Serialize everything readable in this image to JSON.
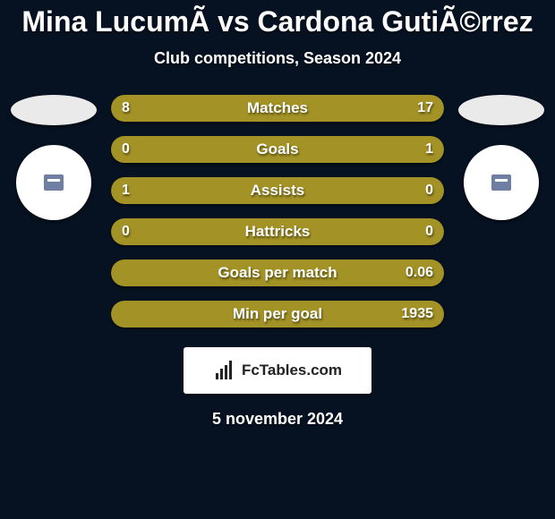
{
  "background_color": "#061221",
  "title": {
    "text": "Mina LucumÃ vs Cardona GutiÃ©rrez",
    "fontsize": 32,
    "color": "#ffffff"
  },
  "subtitle": {
    "text": "Club competitions, Season 2024",
    "fontsize": 18,
    "color": "#ffffff"
  },
  "left_player": {
    "flag_color": "#eaeaea",
    "club_bg": "#ffffff"
  },
  "right_player": {
    "flag_color": "#eaeaea",
    "club_bg": "#ffffff"
  },
  "bars": {
    "left_color": "#a39225",
    "right_color": "#a39225",
    "value_fontsize": 16,
    "label_fontsize": 17,
    "items": [
      {
        "label": "Matches",
        "left_val": "8",
        "right_val": "17",
        "left_pct": 30,
        "right_pct": 70
      },
      {
        "label": "Goals",
        "left_val": "0",
        "right_val": "1",
        "left_pct": 3,
        "right_pct": 97
      },
      {
        "label": "Assists",
        "left_val": "1",
        "right_val": "0",
        "left_pct": 97,
        "right_pct": 3
      },
      {
        "label": "Hattricks",
        "left_val": "0",
        "right_val": "0",
        "left_pct": 45,
        "right_pct": 55
      },
      {
        "label": "Goals per match",
        "left_val": "",
        "right_val": "0.06",
        "left_pct": 100,
        "right_pct": 0
      },
      {
        "label": "Min per goal",
        "left_val": "",
        "right_val": "1935",
        "left_pct": 100,
        "right_pct": 0
      }
    ]
  },
  "logo": {
    "text": "FcTables.com",
    "fontsize": 17,
    "bg": "#ffffff",
    "color": "#222222"
  },
  "date": {
    "text": "5 november 2024",
    "fontsize": 18,
    "color": "#ffffff"
  }
}
